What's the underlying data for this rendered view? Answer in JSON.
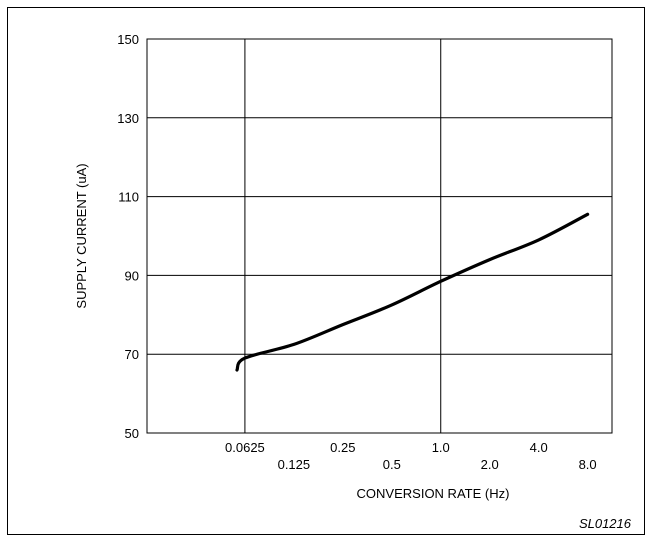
{
  "chart_data": {
    "type": "line",
    "xlabel": "CONVERSION RATE (Hz)",
    "ylabel": "SUPPLY CURRENT (uA)",
    "x_scale": "log2",
    "ylim": [
      50,
      150
    ],
    "xlim": [
      0.015625,
      11.3
    ],
    "y_ticks": [
      50,
      70,
      90,
      110,
      130,
      150
    ],
    "x_ticks": [
      {
        "value": 0.0625,
        "label": "0.0625",
        "row": "upper"
      },
      {
        "value": 0.125,
        "label": "0.125",
        "row": "lower"
      },
      {
        "value": 0.25,
        "label": "0.25",
        "row": "upper"
      },
      {
        "value": 0.5,
        "label": "0.5",
        "row": "lower"
      },
      {
        "value": 1.0,
        "label": "1.0",
        "row": "upper"
      },
      {
        "value": 2.0,
        "label": "2.0",
        "row": "lower"
      },
      {
        "value": 4.0,
        "label": "4.0",
        "row": "upper"
      },
      {
        "value": 8.0,
        "label": "8.0",
        "row": "lower"
      }
    ],
    "x_gridlines": [
      0.0625,
      1.0
    ],
    "grid": true,
    "series": [
      {
        "x": [
          0.0559,
          0.0625,
          0.125,
          0.25,
          0.5,
          1.0,
          2.0,
          4.0,
          8.0
        ],
        "y": [
          66,
          69,
          72.5,
          77.5,
          82.5,
          88.5,
          94,
          99,
          105.5
        ]
      }
    ],
    "figure_id": "SL01216"
  }
}
